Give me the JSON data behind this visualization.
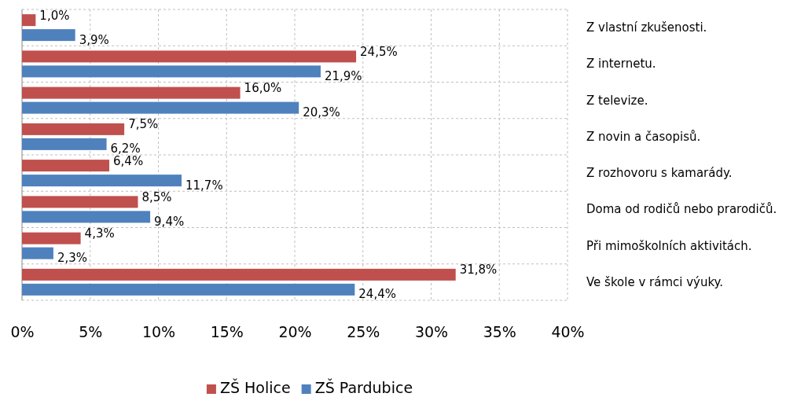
{
  "chart_data": {
    "type": "bar",
    "orientation": "horizontal",
    "categories": [
      "Z vlastní zkušenosti.",
      "Z internetu.",
      "Z televize.",
      "Z novin a časopisů.",
      "Z rozhovoru s kamarády.",
      "Doma od rodičů nebo prarodičů.",
      "Při mimoškolních aktivitách.",
      "Ve škole v rámci výuky."
    ],
    "series": [
      {
        "name": "ZŠ Holice",
        "color": "#c0504d",
        "values": [
          1.0,
          24.5,
          16.0,
          7.5,
          6.4,
          8.5,
          4.3,
          31.8
        ],
        "value_labels": [
          "1,0%",
          "24,5%",
          "16,0%",
          "7,5%",
          "6,4%",
          "8,5%",
          "4,3%",
          "31,8%"
        ]
      },
      {
        "name": "ZŠ Pardubice",
        "color": "#4f81bd",
        "values": [
          3.9,
          21.9,
          20.3,
          6.2,
          11.7,
          9.4,
          2.3,
          24.4
        ],
        "value_labels": [
          "3,9%",
          "21,9%",
          "20,3%",
          "6,2%",
          "11,7%",
          "9,4%",
          "2,3%",
          "24,4%"
        ]
      }
    ],
    "xlim": [
      0,
      40
    ],
    "xticks": [
      {
        "value": 0,
        "label": "0%"
      },
      {
        "value": 5,
        "label": "5%"
      },
      {
        "value": 10,
        "label": "10%"
      },
      {
        "value": 15,
        "label": "15%"
      },
      {
        "value": 20,
        "label": "20%"
      },
      {
        "value": 25,
        "label": "25%"
      },
      {
        "value": 30,
        "label": "30%"
      },
      {
        "value": 35,
        "label": "35%"
      },
      {
        "value": 40,
        "label": "40%"
      }
    ],
    "grid": "x",
    "legend": "bottom"
  }
}
